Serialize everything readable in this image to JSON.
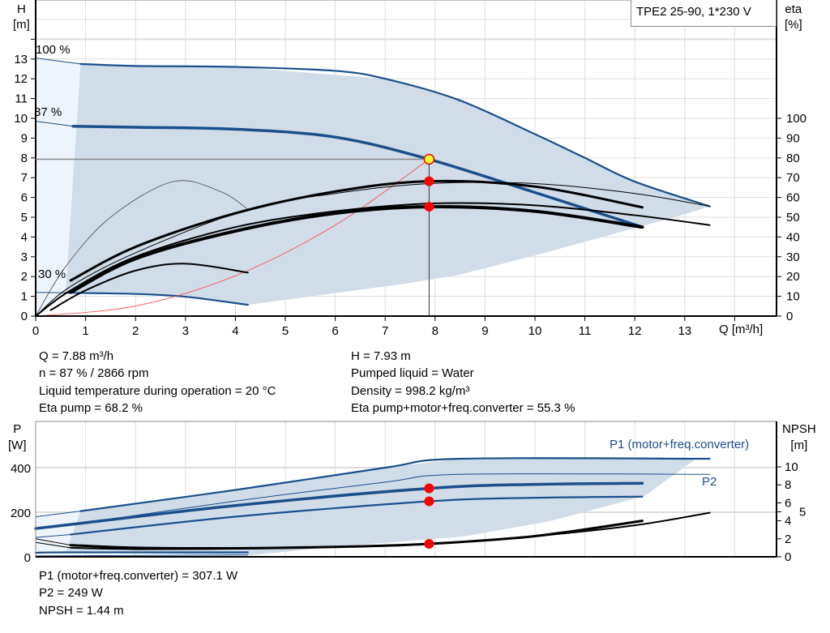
{
  "title": "TPE2 25-90, 1*230 V",
  "colors": {
    "curve": "#1a4f8b",
    "area": "#d0dce8",
    "area_light": "#eef4fb",
    "marker": "#ff0000",
    "duty_point": "#ffff33",
    "system_curve": "#ff4040"
  },
  "chart_data": [
    {
      "type": "line",
      "title": "",
      "xlabel": "Q [m³/h]",
      "ylabel": "H\n[m]",
      "ylabel_name": "H",
      "ylabel_unit": "[m]",
      "y2label_name": "eta",
      "y2label_unit": "[%]",
      "xlim": [
        0,
        14.8
      ],
      "ylim": [
        0,
        16
      ],
      "y2lim": [
        0,
        160
      ],
      "xticks": [
        0,
        1,
        2,
        3,
        4,
        5,
        6,
        7,
        8,
        9,
        10,
        11,
        12,
        13
      ],
      "yticks": [
        0,
        1,
        2,
        3,
        4,
        5,
        6,
        7,
        8,
        9,
        10,
        11,
        12,
        13
      ],
      "y2ticks": [
        0,
        10,
        20,
        30,
        40,
        50,
        60,
        70,
        80,
        90,
        100
      ],
      "grid": true,
      "speed_labels": [
        {
          "text": "100 %",
          "q": 0,
          "h": 13.05
        },
        {
          "text": "87 %",
          "q": 0,
          "h": 9.85
        },
        {
          "text": "30 %",
          "q": 0,
          "h": 1.2
        }
      ],
      "operating_range": {
        "light": [
          [
            0,
            0
          ],
          [
            0,
            13.05
          ],
          [
            0.9,
            12.75
          ],
          [
            0.6,
            1.2
          ]
        ],
        "dark": [
          [
            0.9,
            12.75
          ],
          [
            4,
            12.6
          ],
          [
            7,
            12.0
          ],
          [
            8.46,
            10.94
          ],
          [
            10,
            9.2
          ],
          [
            11,
            8.0
          ],
          [
            12,
            6.8
          ],
          [
            13.5,
            5.55
          ],
          [
            12.8,
            5.0
          ],
          [
            10,
            3.07
          ],
          [
            8.5,
            2.1
          ],
          [
            7.4,
            1.64
          ],
          [
            4.25,
            0.57
          ],
          [
            3,
            0.95
          ],
          [
            2,
            1.1
          ],
          [
            0.6,
            1.18
          ]
        ]
      },
      "series": [
        {
          "label": "100 %",
          "axis": "H",
          "style": "blue-thin",
          "points": [
            [
              0,
              13.05
            ],
            [
              0.9,
              12.75
            ]
          ]
        },
        {
          "axis": "H",
          "style": "blue",
          "points": [
            [
              0.9,
              12.75
            ],
            [
              2,
              12.65
            ],
            [
              4,
              12.6
            ],
            [
              6,
              12.4
            ],
            [
              7,
              12.0
            ],
            [
              8.46,
              10.94
            ],
            [
              10,
              9.2
            ],
            [
              11,
              8.0
            ],
            [
              12,
              6.8
            ],
            [
              13.5,
              5.55
            ]
          ]
        },
        {
          "label": "87 %",
          "axis": "H",
          "style": "blue-thin",
          "points": [
            [
              0,
              9.85
            ],
            [
              0.75,
              9.6
            ]
          ]
        },
        {
          "axis": "H",
          "style": "blue-thick",
          "points": [
            [
              0.75,
              9.6
            ],
            [
              2,
              9.55
            ],
            [
              4,
              9.45
            ],
            [
              6,
              9.05
            ],
            [
              7.88,
              7.93
            ],
            [
              10,
              6.25
            ],
            [
              12.15,
              4.5
            ]
          ]
        },
        {
          "label": "30 %",
          "axis": "H",
          "style": "blue-thin",
          "points": [
            [
              0,
              1.2
            ],
            [
              0.6,
              1.18
            ]
          ]
        },
        {
          "axis": "H",
          "style": "blue",
          "points": [
            [
              0.6,
              1.18
            ],
            [
              2,
              1.12
            ],
            [
              3,
              0.98
            ],
            [
              4.25,
              0.57
            ]
          ]
        },
        {
          "axis": "H",
          "style": "red-thin",
          "points": [
            [
              0,
              0
            ],
            [
              2,
              0.51
            ],
            [
              4,
              2.04
            ],
            [
              6,
              4.6
            ],
            [
              7.88,
              7.93
            ]
          ]
        },
        {
          "axis": "eta",
          "style": "black-hair",
          "points": [
            [
              0,
              0
            ],
            [
              0.6,
              25
            ],
            [
              1.5,
              50
            ],
            [
              2.75,
              68
            ],
            [
              3.7,
              63
            ],
            [
              4.25,
              54
            ]
          ]
        },
        {
          "axis": "eta",
          "style": "black-thin",
          "points": [
            [
              0,
              0
            ],
            [
              0.7,
              15
            ],
            [
              2,
              32
            ],
            [
              4.25,
              54
            ],
            [
              6,
              62
            ],
            [
              7.88,
              67
            ],
            [
              10,
              67
            ],
            [
              12,
              62
            ],
            [
              13.5,
              55.5
            ]
          ]
        },
        {
          "axis": "eta",
          "style": "black-thick",
          "points": [
            [
              0.7,
              18
            ],
            [
              2,
              35
            ],
            [
              4,
              52
            ],
            [
              6,
              63
            ],
            [
              7.88,
              68.2
            ],
            [
              10,
              65.5
            ],
            [
              12.15,
              55
            ]
          ]
        },
        {
          "axis": "eta",
          "style": "black",
          "points": [
            [
              0,
              0
            ],
            [
              0.7,
              13
            ],
            [
              2,
              30
            ],
            [
              4,
              45
            ],
            [
              6,
              53
            ],
            [
              8,
              57
            ],
            [
              10,
              56
            ],
            [
              12,
              51
            ],
            [
              13.5,
              46
            ]
          ]
        },
        {
          "axis": "eta",
          "style": "black-thicker",
          "points": [
            [
              0.7,
              12
            ],
            [
              2,
              29
            ],
            [
              4,
              43
            ],
            [
              6,
              52
            ],
            [
              7.88,
              55.3
            ],
            [
              10,
              53
            ],
            [
              12.15,
              45
            ]
          ]
        },
        {
          "axis": "eta",
          "style": "black",
          "points": [
            [
              0.3,
              3
            ],
            [
              1,
              13
            ],
            [
              2,
              23
            ],
            [
              3,
              26.5
            ],
            [
              4.25,
              22
            ]
          ]
        }
      ],
      "duty_point": {
        "q": 7.88,
        "h": 7.93,
        "eta_pump": 68.2,
        "eta_total": 55.3
      }
    },
    {
      "type": "line",
      "title": "",
      "ylabel_name": "P",
      "ylabel_unit": "[W]",
      "y2label_name": "NPSH",
      "y2label_unit": "[m]",
      "xlim": [
        0,
        14.8
      ],
      "ylim": [
        0,
        610
      ],
      "y2lim": [
        0,
        15
      ],
      "yticks": [
        0,
        200,
        400
      ],
      "y2ticks": [
        0,
        2,
        4,
        5,
        6,
        8,
        10
      ],
      "grid": true,
      "legend_labels": {
        "p1": "P1 (motor+freq.converter)",
        "p2": "P2"
      },
      "operating_range": {
        "light": [
          [
            0,
            180
          ],
          [
            0.9,
            205
          ],
          [
            0.6,
            20
          ],
          [
            0,
            18
          ]
        ],
        "dark": [
          [
            0.9,
            205
          ],
          [
            4,
            300
          ],
          [
            7,
            400
          ],
          [
            8.5,
            440
          ],
          [
            13.25,
            444
          ],
          [
            12.2,
            273
          ],
          [
            10.3,
            160
          ],
          [
            8.56,
            91
          ],
          [
            6,
            45
          ],
          [
            4.3,
            7
          ],
          [
            0.6,
            20
          ]
        ]
      },
      "series": [
        {
          "axis": "P",
          "style": "blue-thin",
          "points": [
            [
              0,
              180
            ],
            [
              0.9,
              205
            ]
          ]
        },
        {
          "axis": "P",
          "style": "blue",
          "points": [
            [
              0.9,
              205
            ],
            [
              4,
              300
            ],
            [
              7,
              400
            ],
            [
              8.5,
              440
            ],
            [
              13.5,
              440
            ]
          ]
        },
        {
          "axis": "P",
          "style": "blue-thin",
          "points": [
            [
              0,
              127
            ],
            [
              0.9,
              150
            ],
            [
              4,
              250
            ],
            [
              7,
              335
            ],
            [
              8.5,
              370
            ],
            [
              13.5,
              370
            ]
          ]
        },
        {
          "axis": "P",
          "style": "blue-thick",
          "points": [
            [
              0,
              127
            ],
            [
              0.7,
              145
            ],
            [
              4,
              230
            ],
            [
              7.88,
              307
            ],
            [
              10,
              325
            ],
            [
              12.15,
              330
            ]
          ]
        },
        {
          "axis": "P",
          "style": "blue-thin",
          "points": [
            [
              0,
              87
            ],
            [
              0.7,
              100
            ]
          ]
        },
        {
          "axis": "P",
          "style": "blue",
          "points": [
            [
              0.7,
              100
            ],
            [
              4,
              180
            ],
            [
              7.88,
              249
            ],
            [
              10,
              265
            ],
            [
              12.15,
              270
            ]
          ]
        },
        {
          "axis": "P",
          "style": "blue",
          "points": [
            [
              0,
              18
            ],
            [
              0.6,
              20
            ],
            [
              4.25,
              20
            ]
          ]
        },
        {
          "axis": "P",
          "style": "blue-thin",
          "points": [
            [
              0,
              4
            ],
            [
              4.25,
              8
            ]
          ]
        },
        {
          "axis": "NPSH",
          "style": "black-thin",
          "points": [
            [
              0,
              2.0
            ],
            [
              0.7,
              1.3
            ]
          ]
        },
        {
          "axis": "NPSH",
          "style": "black-thick",
          "points": [
            [
              0.7,
              1.3
            ],
            [
              2,
              1.0
            ],
            [
              4,
              0.95
            ],
            [
              6,
              1.1
            ],
            [
              7.88,
              1.44
            ],
            [
              10,
              2.3
            ],
            [
              12.15,
              4.0
            ]
          ]
        },
        {
          "axis": "NPSH",
          "style": "black-thin",
          "points": [
            [
              0,
              1.6
            ],
            [
              0.7,
              1.0
            ]
          ]
        },
        {
          "axis": "NPSH",
          "style": "black",
          "points": [
            [
              0.7,
              1.0
            ],
            [
              2,
              0.85
            ],
            [
              4,
              0.9
            ],
            [
              6,
              1.1
            ],
            [
              7.88,
              1.44
            ],
            [
              10,
              2.3
            ],
            [
              12,
              3.5
            ],
            [
              13.5,
              4.9
            ]
          ]
        }
      ],
      "duty_point": {
        "q": 7.88,
        "p1": 307.1,
        "p2": 249,
        "npsh": 1.44
      }
    }
  ],
  "readout": {
    "q": "Q = 7.88 m³/h",
    "n": "n = 87 % / 2866 rpm",
    "temp": "Liquid temperature during operation = 20 °C",
    "eta_pump": "Eta pump = 68.2 %",
    "h": "H = 7.93 m",
    "liquid": "Pumped liquid = Water",
    "density": "Density = 998.2 kg/m³",
    "eta_total": "Eta pump+motor+freq.converter = 55.3 %",
    "p1": "P1 (motor+freq.converter) = 307.1 W",
    "p2": "P2 = 249 W",
    "npsh": "NPSH = 1.44 m"
  }
}
